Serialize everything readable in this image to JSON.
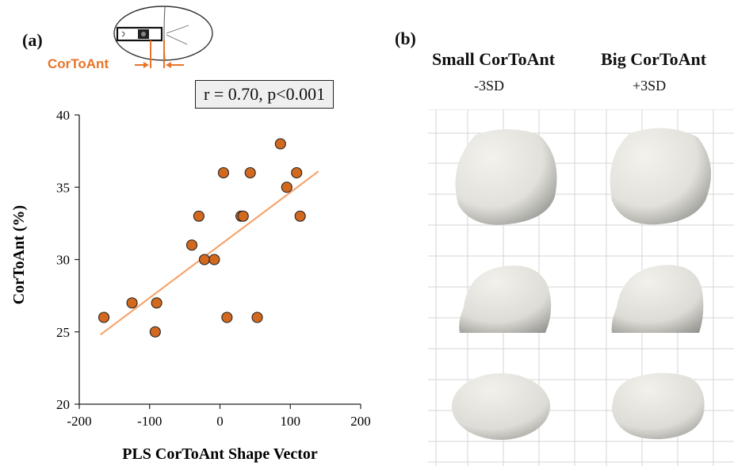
{
  "panel_a": {
    "label": "(a)",
    "inset_label": "CorToAnt",
    "stat_text": "r = 0.70, p<0.001"
  },
  "panel_b": {
    "label": "(b)",
    "columns": [
      {
        "title": "Small CorToAnt",
        "subtitle": "-3SD"
      },
      {
        "title": "Big CorToAnt",
        "subtitle": "+3SD"
      }
    ]
  },
  "colors": {
    "point_fill": "#d2691e",
    "point_stroke": "#222222",
    "fit_line": "#f3a66f",
    "inset_accent": "#e8742a",
    "shape_fill": "#e9e8e2",
    "grid": "#d6d6d6"
  },
  "chart_data": {
    "type": "scatter",
    "title": "",
    "xlabel": "PLS CorToAnt Shape Vector",
    "ylabel": "CorToAnt (%)",
    "xlim": [
      -200,
      200
    ],
    "ylim": [
      20,
      40
    ],
    "xticks": [
      -200,
      -100,
      0,
      100,
      200
    ],
    "yticks": [
      20,
      25,
      30,
      35,
      40
    ],
    "grid": false,
    "points": [
      {
        "x": -165,
        "y": 26
      },
      {
        "x": -125,
        "y": 27
      },
      {
        "x": -92,
        "y": 25
      },
      {
        "x": -90,
        "y": 27
      },
      {
        "x": -40,
        "y": 31
      },
      {
        "x": -30,
        "y": 33
      },
      {
        "x": -22,
        "y": 30
      },
      {
        "x": -8,
        "y": 30
      },
      {
        "x": 5,
        "y": 36
      },
      {
        "x": 10,
        "y": 26
      },
      {
        "x": 30,
        "y": 33
      },
      {
        "x": 33,
        "y": 33
      },
      {
        "x": 43,
        "y": 36
      },
      {
        "x": 53,
        "y": 26
      },
      {
        "x": 86,
        "y": 38
      },
      {
        "x": 95,
        "y": 35
      },
      {
        "x": 109,
        "y": 36
      },
      {
        "x": 114,
        "y": 33
      }
    ],
    "fit_line": {
      "x": [
        -170,
        140
      ],
      "y": [
        24.8,
        36.1
      ]
    }
  }
}
